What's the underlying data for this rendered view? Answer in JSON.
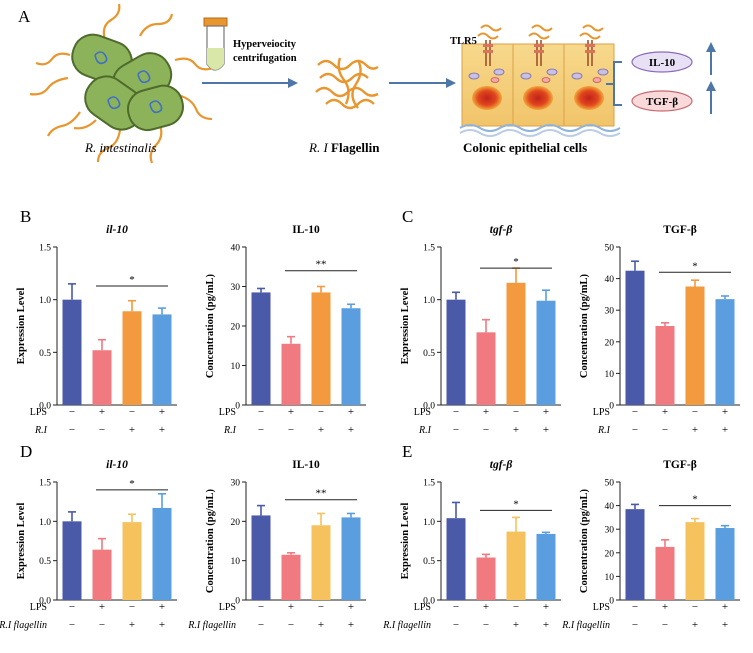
{
  "top": {
    "panel_letter": "A",
    "steps": [
      "Hyperveiocity",
      "centrifugation"
    ],
    "organism_label": "R. intestinalis",
    "flagellin_label_italic": "R. I",
    "flagellin_label_rest": " Flagellin",
    "cells_label": "Colonic epithelial cells",
    "receptor_label": "TLR5",
    "cytokines": [
      "IL-10",
      "TGF-β"
    ]
  },
  "colors": {
    "control": "#4a5aa8",
    "lps": "#f07a80",
    "treat_top": "#f39a3f",
    "treat_bottom": "#f6c25e",
    "combo": "#5a9ee0",
    "cyt_il10_fill": "#e8e0f5",
    "cyt_il10_stroke": "#8a6bb8",
    "cyt_tgf_fill": "#fad9da",
    "cyt_tgf_stroke": "#c96a70",
    "arrow": "#4e77a8",
    "flagella": "#e8962e",
    "bacteria": "#8cb25a"
  },
  "chart_data": [
    {
      "panel_letter": "B",
      "type": "bar",
      "title": "il-10",
      "title_italic": true,
      "ylabel": "Expression Level",
      "ylim": [
        0,
        1.5
      ],
      "yticks": [
        "0.0",
        "0.5",
        "1.0",
        "1.5"
      ],
      "values": [
        1.0,
        0.52,
        0.89,
        0.86
      ],
      "errors": [
        0.15,
        0.1,
        0.1,
        0.06
      ],
      "sig": {
        "label": "*",
        "from": 1,
        "to": 3,
        "y": 1.13
      },
      "row_labels": [
        "LPS",
        "R.I"
      ],
      "row2_italic": true,
      "signs": [
        [
          "−",
          "+",
          "−",
          "+"
        ],
        [
          "−",
          "−",
          "+",
          "+"
        ]
      ],
      "palette": "top"
    },
    {
      "type": "bar",
      "title": "IL-10",
      "title_italic": false,
      "ylabel": "Concentration (pg/mL)",
      "ylim": [
        0,
        40
      ],
      "yticks": [
        "0",
        "10",
        "20",
        "30",
        "40"
      ],
      "values": [
        28.5,
        15.5,
        28.5,
        24.5
      ],
      "errors": [
        1.0,
        1.8,
        1.5,
        1.0
      ],
      "sig": {
        "label": "**",
        "from": 1,
        "to": 3,
        "y": 34
      },
      "row_labels": [
        "LPS",
        "R.I"
      ],
      "row2_italic": true,
      "signs": [
        [
          "−",
          "+",
          "−",
          "+"
        ],
        [
          "−",
          "−",
          "+",
          "+"
        ]
      ],
      "palette": "top"
    },
    {
      "panel_letter": "C",
      "type": "bar",
      "title": "tgf-β",
      "title_italic": true,
      "ylabel": "Expression Level",
      "ylim": [
        0,
        1.5
      ],
      "yticks": [
        "0.0",
        "0.5",
        "1.0",
        "1.5"
      ],
      "values": [
        1.0,
        0.69,
        1.16,
        0.99
      ],
      "errors": [
        0.07,
        0.12,
        0.14,
        0.1
      ],
      "sig": {
        "label": "*",
        "from": 1,
        "to": 3,
        "y": 1.3
      },
      "row_labels": [
        "LPS",
        "R.I"
      ],
      "row2_italic": true,
      "signs": [
        [
          "−",
          "+",
          "−",
          "+"
        ],
        [
          "−",
          "−",
          "+",
          "+"
        ]
      ],
      "palette": "top"
    },
    {
      "type": "bar",
      "title": "TGF-β",
      "title_italic": false,
      "ylabel": "Concentration (pg/mL)",
      "ylim": [
        0,
        50
      ],
      "yticks": [
        "0",
        "10",
        "20",
        "30",
        "40",
        "50"
      ],
      "values": [
        42.5,
        25.0,
        37.5,
        33.5
      ],
      "errors": [
        3.0,
        1.0,
        2.0,
        1.0
      ],
      "sig": {
        "label": "*",
        "from": 1,
        "to": 3,
        "y": 42
      },
      "row_labels": [
        "LPS",
        "R.I"
      ],
      "row2_italic": true,
      "signs": [
        [
          "−",
          "+",
          "−",
          "+"
        ],
        [
          "−",
          "−",
          "+",
          "+"
        ]
      ],
      "palette": "top"
    },
    {
      "panel_letter": "D",
      "type": "bar",
      "title": "il-10",
      "title_italic": true,
      "ylabel": "Expression Level",
      "ylim": [
        0,
        1.5
      ],
      "yticks": [
        "0.0",
        "0.5",
        "1.0",
        "1.5"
      ],
      "values": [
        1.0,
        0.64,
        0.99,
        1.17
      ],
      "errors": [
        0.12,
        0.14,
        0.1,
        0.18
      ],
      "sig": {
        "label": "*",
        "from": 1,
        "to": 3,
        "y": 1.4
      },
      "row_labels": [
        "LPS",
        "R.I flagellin"
      ],
      "row2_italic": true,
      "signs": [
        [
          "−",
          "+",
          "−",
          "+"
        ],
        [
          "−",
          "−",
          "+",
          "+"
        ]
      ],
      "palette": "bottom"
    },
    {
      "type": "bar",
      "title": "IL-10",
      "title_italic": false,
      "ylabel": "Concentration (pg/mL)",
      "ylim": [
        0,
        30
      ],
      "yticks": [
        "0",
        "10",
        "20",
        "30"
      ],
      "values": [
        21.5,
        11.5,
        19.0,
        21.0
      ],
      "errors": [
        2.5,
        0.5,
        3.0,
        1.0
      ],
      "sig": {
        "label": "**",
        "from": 1,
        "to": 3,
        "y": 25.5
      },
      "row_labels": [
        "LPS",
        "R.I flagellin"
      ],
      "row2_italic": true,
      "signs": [
        [
          "−",
          "+",
          "−",
          "+"
        ],
        [
          "−",
          "−",
          "+",
          "+"
        ]
      ],
      "palette": "bottom"
    },
    {
      "panel_letter": "E",
      "type": "bar",
      "title": "tgf-β",
      "title_italic": true,
      "ylabel": "Expression Level",
      "ylim": [
        0,
        1.5
      ],
      "yticks": [
        "0.0",
        "0.5",
        "1.0",
        "1.5"
      ],
      "values": [
        1.04,
        0.54,
        0.87,
        0.84
      ],
      "errors": [
        0.2,
        0.04,
        0.18,
        0.02
      ],
      "sig": {
        "label": "*",
        "from": 1,
        "to": 3,
        "y": 1.14
      },
      "row_labels": [
        "LPS",
        "R.I flagellin"
      ],
      "row2_italic": true,
      "signs": [
        [
          "−",
          "+",
          "−",
          "+"
        ],
        [
          "−",
          "−",
          "+",
          "+"
        ]
      ],
      "palette": "bottom"
    },
    {
      "type": "bar",
      "title": "TGF-β",
      "title_italic": false,
      "ylabel": "Concentration (pg/mL)",
      "ylim": [
        0,
        50
      ],
      "yticks": [
        "0",
        "10",
        "20",
        "30",
        "40",
        "50"
      ],
      "values": [
        38.5,
        22.5,
        33.0,
        30.5
      ],
      "errors": [
        2.0,
        3.0,
        1.5,
        1.0
      ],
      "sig": {
        "label": "*",
        "from": 1,
        "to": 3,
        "y": 40
      },
      "row_labels": [
        "LPS",
        "R.I flagellin"
      ],
      "row2_italic": true,
      "signs": [
        [
          "−",
          "+",
          "−",
          "+"
        ],
        [
          "−",
          "−",
          "+",
          "+"
        ]
      ],
      "palette": "bottom"
    }
  ]
}
